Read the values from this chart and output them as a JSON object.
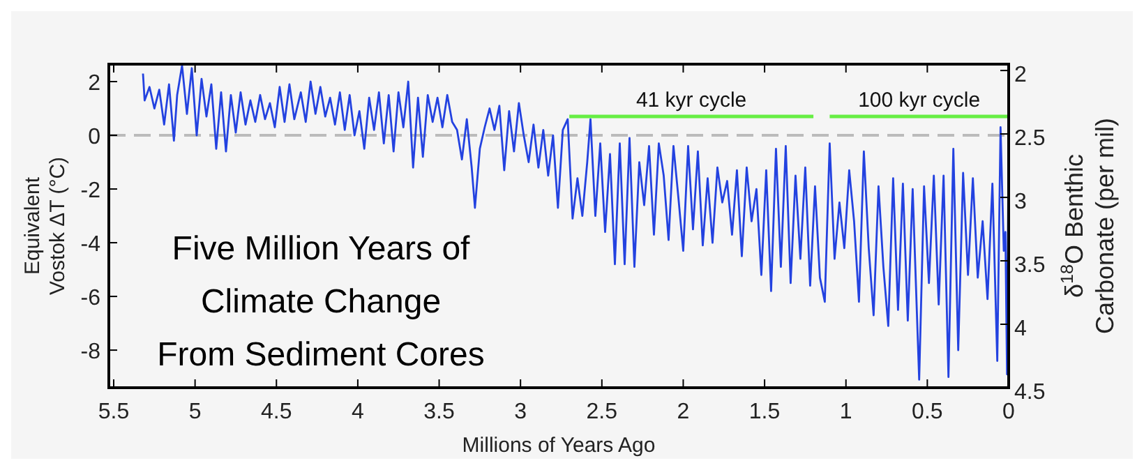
{
  "chart_data": {
    "type": "line",
    "title": "Five Million Years of\nClimate Change\nFrom Sediment Cores",
    "xlabel": "Millions of Years Ago",
    "ylabel": "Equivalent\nVostok ΔT (°C)",
    "y2label": "δ$^{18}$O Benthic\nCarbonate (per mil)",
    "xlim": [
      5.53,
      0
    ],
    "xticks": [
      {
        "value": 5.5,
        "label": "5.5"
      },
      5,
      {
        "value": 4.5,
        "label": "4.5"
      },
      4,
      {
        "value": 3.5,
        "label": "3.5"
      },
      3,
      {
        "value": 2.5,
        "label": "2.5"
      },
      2,
      {
        "value": 1.5,
        "label": "1.5"
      },
      1,
      {
        "value": 0.5,
        "label": "0.5"
      },
      0
    ],
    "ylim": [
      -9.4,
      2.65
    ],
    "yticks": [
      -8,
      -6,
      -4,
      -2,
      0,
      2
    ],
    "y2lim": [
      4.5,
      1.95
    ],
    "y2ticks": [
      2,
      {
        "value": 2.5,
        "label": "2.5"
      },
      3,
      {
        "value": 3.5,
        "label": "3.5"
      },
      4,
      {
        "value": 4.5,
        "label": "4.5"
      }
    ],
    "ref_lines": [
      {
        "axis": "y",
        "value": 0,
        "color": "#bbbbbb",
        "line_style": "dashed"
      }
    ],
    "series": [
      {
        "color": "#2342e0",
        "x": [
          5.32,
          5.31,
          5.28,
          5.25,
          5.22,
          5.19,
          5.16,
          5.13,
          5.11,
          5.08,
          5.05,
          5.02,
          4.99,
          4.96,
          4.93,
          4.9,
          4.87,
          4.84,
          4.81,
          4.78,
          4.75,
          4.72,
          4.69,
          4.66,
          4.63,
          4.6,
          4.57,
          4.54,
          4.51,
          4.48,
          4.45,
          4.42,
          4.39,
          4.35,
          4.32,
          4.29,
          4.26,
          4.23,
          4.2,
          4.17,
          4.14,
          4.11,
          4.08,
          4.05,
          4.02,
          3.99,
          3.96,
          3.93,
          3.9,
          3.87,
          3.84,
          3.81,
          3.78,
          3.75,
          3.72,
          3.69,
          3.66,
          3.63,
          3.6,
          3.57,
          3.54,
          3.51,
          3.48,
          3.45,
          3.42,
          3.39,
          3.36,
          3.33,
          3.3,
          3.28,
          3.25,
          3.22,
          3.19,
          3.16,
          3.13,
          3.1,
          3.07,
          3.04,
          3.01,
          2.98,
          2.95,
          2.92,
          2.89,
          2.86,
          2.83,
          2.8,
          2.77,
          2.74,
          2.71,
          2.68,
          2.65,
          2.62,
          2.59,
          2.57,
          2.54,
          2.51,
          2.48,
          2.45,
          2.42,
          2.39,
          2.36,
          2.33,
          2.3,
          2.27,
          2.24,
          2.21,
          2.18,
          2.15,
          2.12,
          2.09,
          2.06,
          2.03,
          2.0,
          1.97,
          1.94,
          1.91,
          1.88,
          1.85,
          1.82,
          1.79,
          1.76,
          1.73,
          1.7,
          1.67,
          1.64,
          1.61,
          1.58,
          1.55,
          1.52,
          1.49,
          1.46,
          1.43,
          1.4,
          1.37,
          1.34,
          1.31,
          1.28,
          1.25,
          1.22,
          1.19,
          1.16,
          1.13,
          1.1,
          1.07,
          1.04,
          1.01,
          0.98,
          0.95,
          0.92,
          0.89,
          0.86,
          0.83,
          0.8,
          0.77,
          0.74,
          0.71,
          0.68,
          0.65,
          0.62,
          0.59,
          0.55,
          0.52,
          0.49,
          0.46,
          0.43,
          0.4,
          0.37,
          0.34,
          0.31,
          0.28,
          0.25,
          0.22,
          0.19,
          0.16,
          0.13,
          0.1,
          0.07,
          0.05,
          0.03,
          0.02,
          0.01,
          0.0
        ],
        "values": [
          2.3,
          1.3,
          1.8,
          1.0,
          1.7,
          0.4,
          1.9,
          -0.2,
          1.5,
          2.6,
          0.8,
          2.5,
          0.0,
          2.1,
          0.7,
          1.9,
          -0.5,
          1.6,
          -0.6,
          1.5,
          0.1,
          1.6,
          0.4,
          1.3,
          0.5,
          1.5,
          0.6,
          1.2,
          0.3,
          1.8,
          0.5,
          1.9,
          0.6,
          1.6,
          0.5,
          2.0,
          0.8,
          1.8,
          0.7,
          1.4,
          0.4,
          1.6,
          0.2,
          1.5,
          0.0,
          0.9,
          -0.5,
          1.4,
          0.2,
          1.6,
          -0.3,
          1.5,
          -0.6,
          1.6,
          0.3,
          2.0,
          -1.2,
          1.4,
          -0.8,
          1.5,
          0.5,
          1.4,
          0.3,
          1.5,
          0.5,
          0.2,
          -0.9,
          0.6,
          -1.2,
          -2.7,
          -0.5,
          0.3,
          1.0,
          0.2,
          1.1,
          -1.3,
          0.9,
          -0.6,
          1.2,
          0.0,
          -1.0,
          0.4,
          -1.2,
          0.2,
          -1.5,
          0.0,
          -2.7,
          0.2,
          0.6,
          -3.1,
          -1.6,
          -3.0,
          -1.0,
          0.6,
          -3.0,
          -0.3,
          -3.6,
          -0.7,
          -4.8,
          -0.3,
          -4.8,
          -0.1,
          -4.9,
          -1.0,
          -2.6,
          -0.4,
          -3.7,
          -0.3,
          -1.5,
          -3.9,
          -0.4,
          -2.3,
          -4.3,
          -0.4,
          -3.5,
          -0.6,
          -4.1,
          -1.6,
          -4.0,
          -1.2,
          -2.5,
          -1.7,
          -3.7,
          -1.3,
          -4.5,
          -1.2,
          -3.2,
          -2.0,
          -5.2,
          -1.3,
          -5.8,
          -0.5,
          -4.9,
          -0.4,
          -5.5,
          -1.5,
          -4.6,
          -1.2,
          -5.6,
          -1.9,
          -5.3,
          -6.2,
          -0.3,
          -4.6,
          -2.5,
          -4.2,
          -1.3,
          -3.2,
          -6.2,
          -0.6,
          -4.2,
          -6.7,
          -1.9,
          -4.9,
          -7.1,
          -1.6,
          -6.5,
          -1.8,
          -6.9,
          -2.0,
          -9.1,
          -1.9,
          -5.5,
          -1.5,
          -6.3,
          -1.5,
          -9.0,
          -0.5,
          -8.0,
          -1.4,
          -5.2,
          -1.6,
          -5.3,
          -3.2,
          -6.1,
          -1.8,
          -8.4,
          0.3,
          -4.3,
          -3.6,
          -8.9,
          0.0
        ]
      },
      {
        "type": "line",
        "name": "41 kyr cycle",
        "color": "#66ee44",
        "x": [
          2.7,
          1.2
        ],
        "values": [
          0.7,
          0.7
        ]
      },
      {
        "type": "line",
        "name": "100 kyr cycle",
        "color": "#66ee44",
        "x": [
          1.1,
          0
        ],
        "values": [
          0.7,
          0.7
        ]
      }
    ]
  }
}
